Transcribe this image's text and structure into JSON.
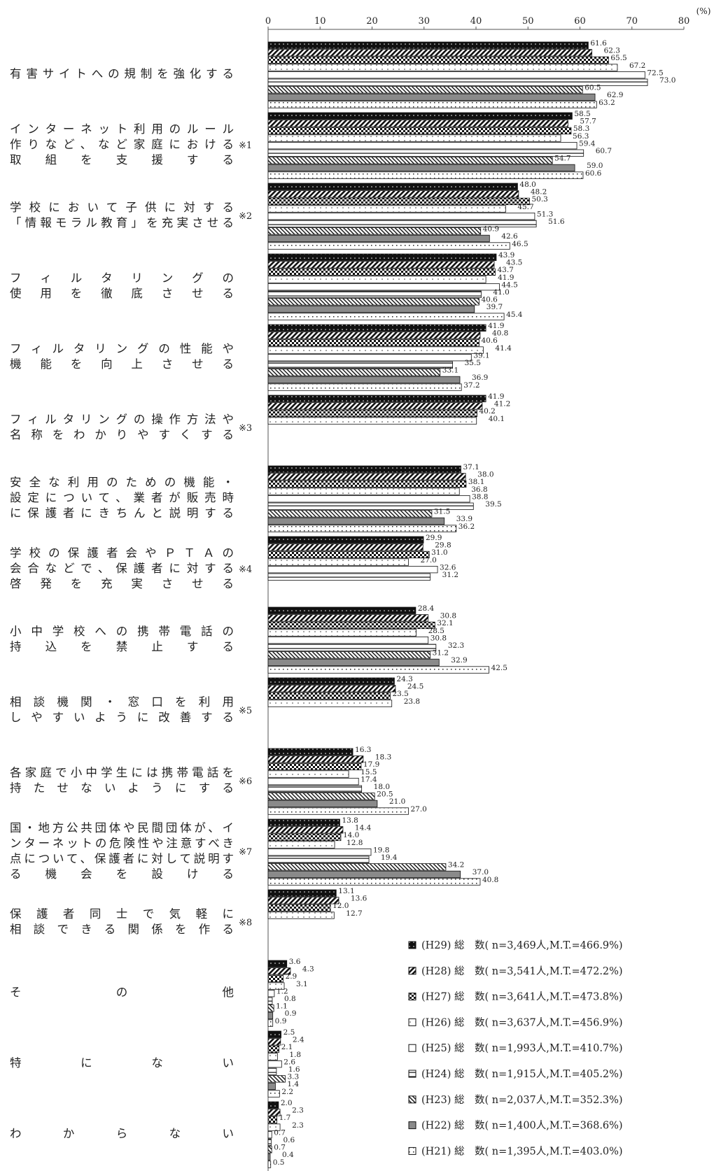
{
  "chart_data": {
    "type": "bar",
    "orientation": "horizontal",
    "unit": "(%)",
    "xlim": [
      0,
      80
    ],
    "xticks": [
      0,
      10,
      20,
      30,
      40,
      50,
      60,
      70,
      80
    ],
    "legend_position": "bottom-right",
    "series": [
      {
        "name": "(H29) 総　数( n=3,469人,M.T.=466.9%)",
        "pattern": "solid-black"
      },
      {
        "name": "(H28) 総　数( n=3,541人,M.T.=472.2%)",
        "pattern": "diagonal-hatch"
      },
      {
        "name": "(H27) 総　数( n=3,641人,M.T.=473.8%)",
        "pattern": "checker"
      },
      {
        "name": "(H26) 総　数( n=3,637人,M.T.=456.9%)",
        "pattern": "dotted"
      },
      {
        "name": "(H25) 総　数( n=1,993人,M.T.=410.7%)",
        "pattern": "white"
      },
      {
        "name": "(H24) 総　数( n=1,915人,M.T.=405.2%)",
        "pattern": "horizontal-line"
      },
      {
        "name": "(H23) 総　数( n=2,037人,M.T.=352.3%)",
        "pattern": "diagonal-fine"
      },
      {
        "name": "(H22) 総　数( n=1,400人,M.T.=368.6%)",
        "pattern": "gray"
      },
      {
        "name": "(H21) 総　数( n=1,395人,M.T.=403.0%)",
        "pattern": "grid-dots"
      }
    ],
    "categories": [
      {
        "lines": [
          "有害サイトへの規制を強化する"
        ],
        "note": "",
        "values": [
          61.6,
          62.3,
          65.5,
          67.2,
          72.5,
          73.0,
          60.5,
          62.9,
          63.2
        ],
        "labels": [
          "61.6",
          "62.3",
          "65.5",
          "67.2",
          "72.5",
          "73.0",
          "60.5",
          "62.9",
          "63.2"
        ]
      },
      {
        "lines": [
          "インターネット利用のルール",
          "作りなど、など家庭における",
          "取　組　を　支　援　す　る"
        ],
        "note": "※1",
        "values": [
          58.5,
          57.7,
          58.3,
          56.3,
          59.4,
          60.7,
          54.7,
          59.0,
          60.6
        ],
        "labels": [
          "58.5",
          "57.7",
          "58.3",
          "56.3",
          "59.4",
          "60.7",
          "54.7",
          "59.0",
          "60.6"
        ]
      },
      {
        "lines": [
          "学校において子供に対する",
          "「情報モラル教育」を充実させる"
        ],
        "note": "※2",
        "values": [
          48.0,
          48.2,
          50.3,
          45.7,
          51.3,
          51.6,
          40.9,
          42.6,
          46.5
        ],
        "labels": [
          "48.0",
          "48.2",
          "50.3",
          "45.7",
          "51.3",
          "51.6",
          "40.9",
          "42.6",
          "46.5"
        ]
      },
      {
        "lines": [
          "フ　ィ　ル　タ　リ　ン　グ　の",
          "使　用　を　徹　底　さ　せ　る"
        ],
        "note": "",
        "values": [
          43.9,
          43.5,
          43.7,
          41.9,
          44.5,
          41.0,
          40.6,
          39.7,
          45.4
        ],
        "labels": [
          "43.9",
          "43.5",
          "43.7",
          "41.9",
          "44.5",
          "41.0",
          "40.6",
          "39.7",
          "45.4"
        ]
      },
      {
        "lines": [
          "フィルタリングの性能や",
          "機　能　を　向　上　さ　せ　る"
        ],
        "note": "",
        "values": [
          41.9,
          40.8,
          40.6,
          41.4,
          39.1,
          35.5,
          33.1,
          36.9,
          37.2
        ],
        "labels": [
          "41.9",
          "40.8",
          "40.6",
          "41.4",
          "39.1",
          "35.5",
          "33.1",
          "36.9",
          "37.2"
        ]
      },
      {
        "lines": [
          "フィルタリングの操作方法や",
          "名称をわかりやすくする"
        ],
        "note": "※3",
        "values": [
          41.9,
          41.2,
          40.2,
          40.1,
          null,
          null,
          null,
          null,
          null
        ],
        "labels": [
          "41.9",
          "41.2",
          "40.2",
          "40.1",
          "",
          "",
          "",
          "",
          ""
        ]
      },
      {
        "lines": [
          "安全な利用のための機能・",
          "設定について、業者が販売時",
          "に保護者にきちんと説明する"
        ],
        "note": "",
        "values": [
          37.1,
          38.0,
          38.1,
          36.8,
          38.8,
          39.5,
          31.5,
          33.9,
          36.2
        ],
        "labels": [
          "37.1",
          "38.0",
          "38.1",
          "36.8",
          "38.8",
          "39.5",
          "31.5",
          "33.9",
          "36.2"
        ]
      },
      {
        "lines": [
          "学校の保護者会やＰＴＡの",
          "会合などで、保護者に対する",
          "啓　発　を　充　実　さ　せ　る"
        ],
        "note": "※4",
        "values": [
          29.9,
          29.8,
          31.0,
          27.0,
          32.6,
          31.2,
          null,
          null,
          null
        ],
        "labels": [
          "29.9",
          "29.8",
          "31.0",
          "27.0",
          "32.6",
          "31.2",
          "",
          "",
          ""
        ]
      },
      {
        "lines": [
          "小中学校への携帯電話の",
          "持　込　を　禁　止　す　る"
        ],
        "note": "",
        "values": [
          28.4,
          30.8,
          32.1,
          28.5,
          30.8,
          32.3,
          31.2,
          32.9,
          42.5
        ],
        "labels": [
          "28.4",
          "30.8",
          "32.1",
          "28.5",
          "30.8",
          "32.3",
          "31.2",
          "32.9",
          "42.5"
        ]
      },
      {
        "lines": [
          "相談機関・窓口を利用",
          "しやすいように改善する"
        ],
        "note": "※5",
        "values": [
          24.3,
          24.5,
          23.5,
          23.8,
          null,
          null,
          null,
          null,
          null
        ],
        "labels": [
          "24.3",
          "24.5",
          "23.5",
          "23.8",
          "",
          "",
          "",
          "",
          ""
        ]
      },
      {
        "lines": [
          "各家庭で小中学生には携帯電話を",
          "持たせないようにする"
        ],
        "note": "※6",
        "values": [
          16.3,
          18.3,
          17.9,
          15.5,
          17.4,
          18.0,
          20.5,
          21.0,
          27.0
        ],
        "labels": [
          "16.3",
          "18.3",
          "17.9",
          "15.5",
          "17.4",
          "18.0",
          "20.5",
          "21.0",
          "27.0"
        ]
      },
      {
        "lines": [
          "国・地方公共団体や民間団体が、イ",
          "ンターネットの危険性や注意すべき",
          "点について、保護者に対して説明す",
          "る　機　会　を　設　け　る"
        ],
        "note": "※7",
        "values": [
          13.8,
          14.4,
          14.0,
          12.8,
          19.8,
          19.4,
          34.2,
          37.0,
          40.8
        ],
        "labels": [
          "13.8",
          "14.4",
          "14.0",
          "12.8",
          "19.8",
          "19.4",
          "34.2",
          "37.0",
          "40.8"
        ]
      },
      {
        "lines": [
          "保護者同士で気軽に",
          "相談できる関係を作る"
        ],
        "note": "※8",
        "values": [
          13.1,
          13.6,
          12.0,
          12.7,
          null,
          null,
          null,
          null,
          null
        ],
        "labels": [
          "13.1",
          "13.6",
          "12.0",
          "12.7",
          "",
          "",
          "",
          "",
          ""
        ]
      },
      {
        "lines": [
          "そ　　　　　　の　　　　　　他"
        ],
        "note": "",
        "values": [
          3.6,
          4.3,
          2.9,
          3.1,
          1.2,
          0.8,
          1.1,
          0.9,
          0.9
        ],
        "labels": [
          "3.6",
          "4.3",
          "2.9",
          "3.1",
          "1.2",
          "0.8",
          "1.1",
          "0.9",
          "0.9"
        ]
      },
      {
        "lines": [
          "特　　　　に　　　　な　　　　い"
        ],
        "note": "",
        "values": [
          2.5,
          2.4,
          2.1,
          1.8,
          2.6,
          1.6,
          3.3,
          1.4,
          2.2
        ],
        "labels": [
          "2.5",
          "2.4",
          "2.1",
          "1.8",
          "2.6",
          "1.6",
          "3.3",
          "1.4",
          "2.2"
        ]
      },
      {
        "lines": [
          "わ　　か　　ら　　な　　い"
        ],
        "note": "",
        "values": [
          2.0,
          2.3,
          1.7,
          2.3,
          0.7,
          0.6,
          0.7,
          0.4,
          0.5
        ],
        "labels": [
          "2.0",
          "2.3",
          "1.7",
          "2.3",
          "0.7",
          "0.6",
          "0.7",
          "0.4",
          "0.5"
        ]
      }
    ]
  }
}
